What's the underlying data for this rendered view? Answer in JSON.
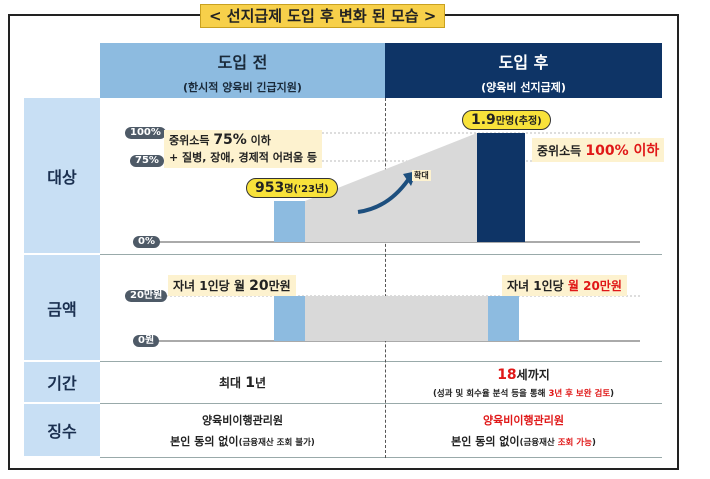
{
  "title": "< 선지급제 도입 후 변화 된 모습 >",
  "header": {
    "before_title": "도입 전",
    "before_sub": "(한시적 양육비 긴급지원)",
    "after_title": "도입 후",
    "after_sub": "(양육비 선지급제)"
  },
  "rows": {
    "target": "대상",
    "amount": "금액",
    "period": "기간",
    "collection": "징수"
  },
  "target": {
    "ticks": [
      "100%",
      "75%",
      "0%"
    ],
    "before_note_line1_a": "중위소득 ",
    "before_note_line1_b": "75%",
    "before_note_line1_c": " 이하",
    "before_note_line2": "+ 질병, 장애, 경제적 어려움 등",
    "before_count_a": "953",
    "before_count_b": "명('23년)",
    "expand_label": "확대",
    "after_count_a": "1.9",
    "after_count_b": "만명(추정)",
    "after_note_a": "중위소득 ",
    "after_note_b": "100% 이하"
  },
  "amount": {
    "ticks": [
      "20만원",
      "0원"
    ],
    "before_a": "자녀 1인당 월 ",
    "before_b": "20",
    "before_c": "만원",
    "after_a": "자녀 1인당 ",
    "after_b": "월 20만원"
  },
  "period": {
    "before_a": "최대 ",
    "before_b": "1",
    "before_c": "년",
    "after_a": "18",
    "after_b": "세까지",
    "after_note_a": "(성과 및 회수율 분석 등을 통해 ",
    "after_note_b": "3년 후 보완 검토",
    "after_note_c": ")"
  },
  "collection": {
    "before_line1": "양육비이행관리원",
    "before_line2_a": "본인 동의 없이",
    "before_line2_b": "(금융재산 조회 불가)",
    "after_line1": "양육비이행관리원",
    "after_line2_a": "본인 동의 없이",
    "after_line2_b": "(금융재산 ",
    "after_line2_c": "조회 가능",
    "after_line2_d": ")"
  },
  "colors": {
    "header_before": "#8dbbe0",
    "header_after": "#0e3466",
    "bar_before": "#8dbbe0",
    "bar_after": "#0e3466",
    "row_label_bg": "#c8dff4",
    "accent_red": "#e01818",
    "badge_yellow": "#f8e23a"
  }
}
